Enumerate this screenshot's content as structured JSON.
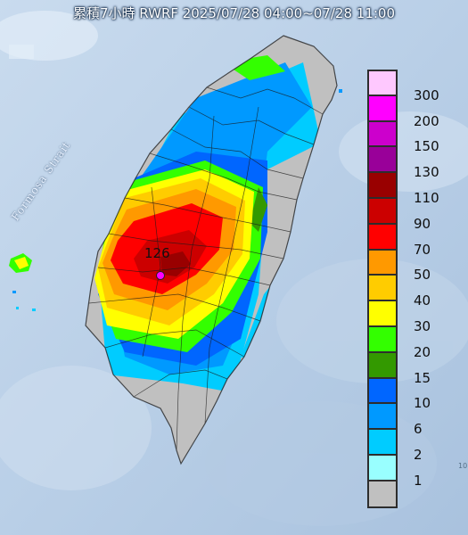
{
  "title": "累積7小時 RWRF 2025/07/28 04:00~07/28 11:00",
  "strait_label": "Formosa Strait",
  "max_value_label": "126",
  "edge_text": "10",
  "legend": [
    {
      "label": "300",
      "color": "#fec8fe"
    },
    {
      "label": "200",
      "color": "#ff00ff"
    },
    {
      "label": "150",
      "color": "#cc00cc"
    },
    {
      "label": "130",
      "color": "#990099"
    },
    {
      "label": "110",
      "color": "#990000"
    },
    {
      "label": "90",
      "color": "#cc0000"
    },
    {
      "label": "70",
      "color": "#ff0000"
    },
    {
      "label": "50",
      "color": "#ff9900"
    },
    {
      "label": "40",
      "color": "#ffcc00"
    },
    {
      "label": "30",
      "color": "#ffff00"
    },
    {
      "label": "20",
      "color": "#33ff00"
    },
    {
      "label": "15",
      "color": "#339900"
    },
    {
      "label": "10",
      "color": "#0066ff"
    },
    {
      "label": "6",
      "color": "#0099ff"
    },
    {
      "label": "2",
      "color": "#00ccff"
    },
    {
      "label": "1",
      "color": "#99ffff"
    },
    {
      "label": "",
      "color": "#c0c0c0"
    }
  ]
}
